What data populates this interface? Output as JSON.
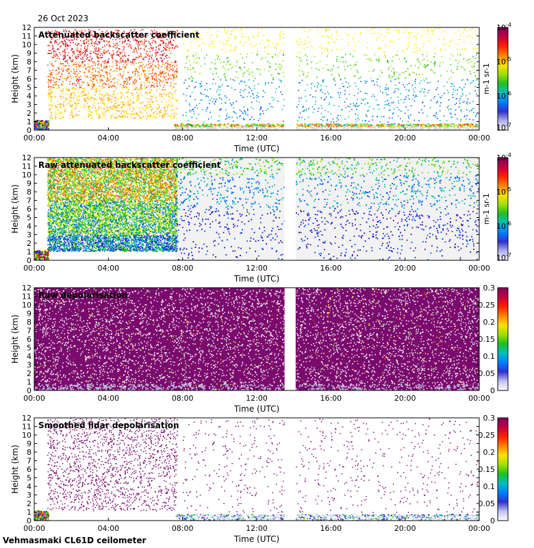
{
  "header": {
    "date": "26 Oct 2023"
  },
  "footer": {
    "site_instrument": "Vehmasmaki CL61D ceilometer"
  },
  "chart_data": [
    {
      "type": "heatmap",
      "title": "Attenuated backscatter coefficient",
      "xlabel": "Time (UTC)",
      "ylabel": "Height (km)",
      "xticks": [
        "00:00",
        "04:00",
        "08:00",
        "12:00",
        "16:00",
        "20:00",
        "00:00"
      ],
      "yticks": [
        0,
        1,
        2,
        3,
        4,
        5,
        6,
        7,
        8,
        9,
        10,
        11,
        12
      ],
      "ylim": [
        0,
        12
      ],
      "colorbar": {
        "scale": "log",
        "ticks": [
          "10^-7",
          "10^-6",
          "10^-5",
          "10^-4"
        ],
        "exponents": [
          -7,
          -6,
          -5,
          -4
        ],
        "label": "m-1 sr-1"
      },
      "data_gap_hours": [
        13.5,
        14.1
      ],
      "features": "boundary layer 0-1 km; high signal 1-8 km between 00:40 and 07:40; sparse signal above 8 km after 08:00"
    },
    {
      "type": "heatmap",
      "title": "Raw attenuated backscatter coefficient",
      "xlabel": "Time (UTC)",
      "ylabel": "Height (km)",
      "xticks": [
        "00:00",
        "04:00",
        "08:00",
        "12:00",
        "16:00",
        "20:00",
        "00:00"
      ],
      "yticks": [
        0,
        1,
        2,
        3,
        4,
        5,
        6,
        7,
        8,
        9,
        10,
        11,
        12
      ],
      "ylim": [
        0,
        12
      ],
      "colorbar": {
        "scale": "log",
        "ticks": [
          "10^-7",
          "10^-6",
          "10^-5",
          "10^-4"
        ],
        "exponents": [
          -7,
          -6,
          -5,
          -4
        ],
        "label": "m-1 sr-1"
      },
      "data_gap_hours": [
        13.5,
        14.1
      ],
      "features": "dense noise-dominated field; strong signal 00:40-07:40"
    },
    {
      "type": "heatmap",
      "title": "Raw depolarisation",
      "xlabel": "Time (UTC)",
      "ylabel": "Height (km)",
      "xticks": [
        "00:00",
        "04:00",
        "08:00",
        "12:00",
        "16:00",
        "20:00",
        "00:00"
      ],
      "yticks": [
        0,
        1,
        2,
        3,
        4,
        5,
        6,
        7,
        8,
        9,
        10,
        11,
        12
      ],
      "ylim": [
        0,
        12
      ],
      "colorbar": {
        "scale": "linear",
        "ticks": [
          0,
          0.05,
          0.1,
          0.15,
          0.2,
          0.25,
          0.3
        ],
        "range": [
          0,
          0.3
        ]
      },
      "data_gap_hours": [
        13.5,
        14.1
      ],
      "features": "mostly saturated purple noise field"
    },
    {
      "type": "heatmap",
      "title": "Smoothed lidar depolarisation",
      "xlabel": "Time (UTC)",
      "ylabel": "Height (km)",
      "xticks": [
        "00:00",
        "04:00",
        "08:00",
        "12:00",
        "16:00",
        "20:00",
        "00:00"
      ],
      "yticks": [
        0,
        1,
        2,
        3,
        4,
        5,
        6,
        7,
        8,
        9,
        10,
        11,
        12
      ],
      "ylim": [
        0,
        12
      ],
      "colorbar": {
        "scale": "linear",
        "ticks": [
          0,
          0.05,
          0.1,
          0.15,
          0.2,
          0.25,
          0.3
        ],
        "range": [
          0,
          0.3
        ]
      },
      "data_gap_hours": [
        13.5,
        14.1
      ],
      "features": "sparse purple points; low-level layer below 1 km"
    }
  ]
}
